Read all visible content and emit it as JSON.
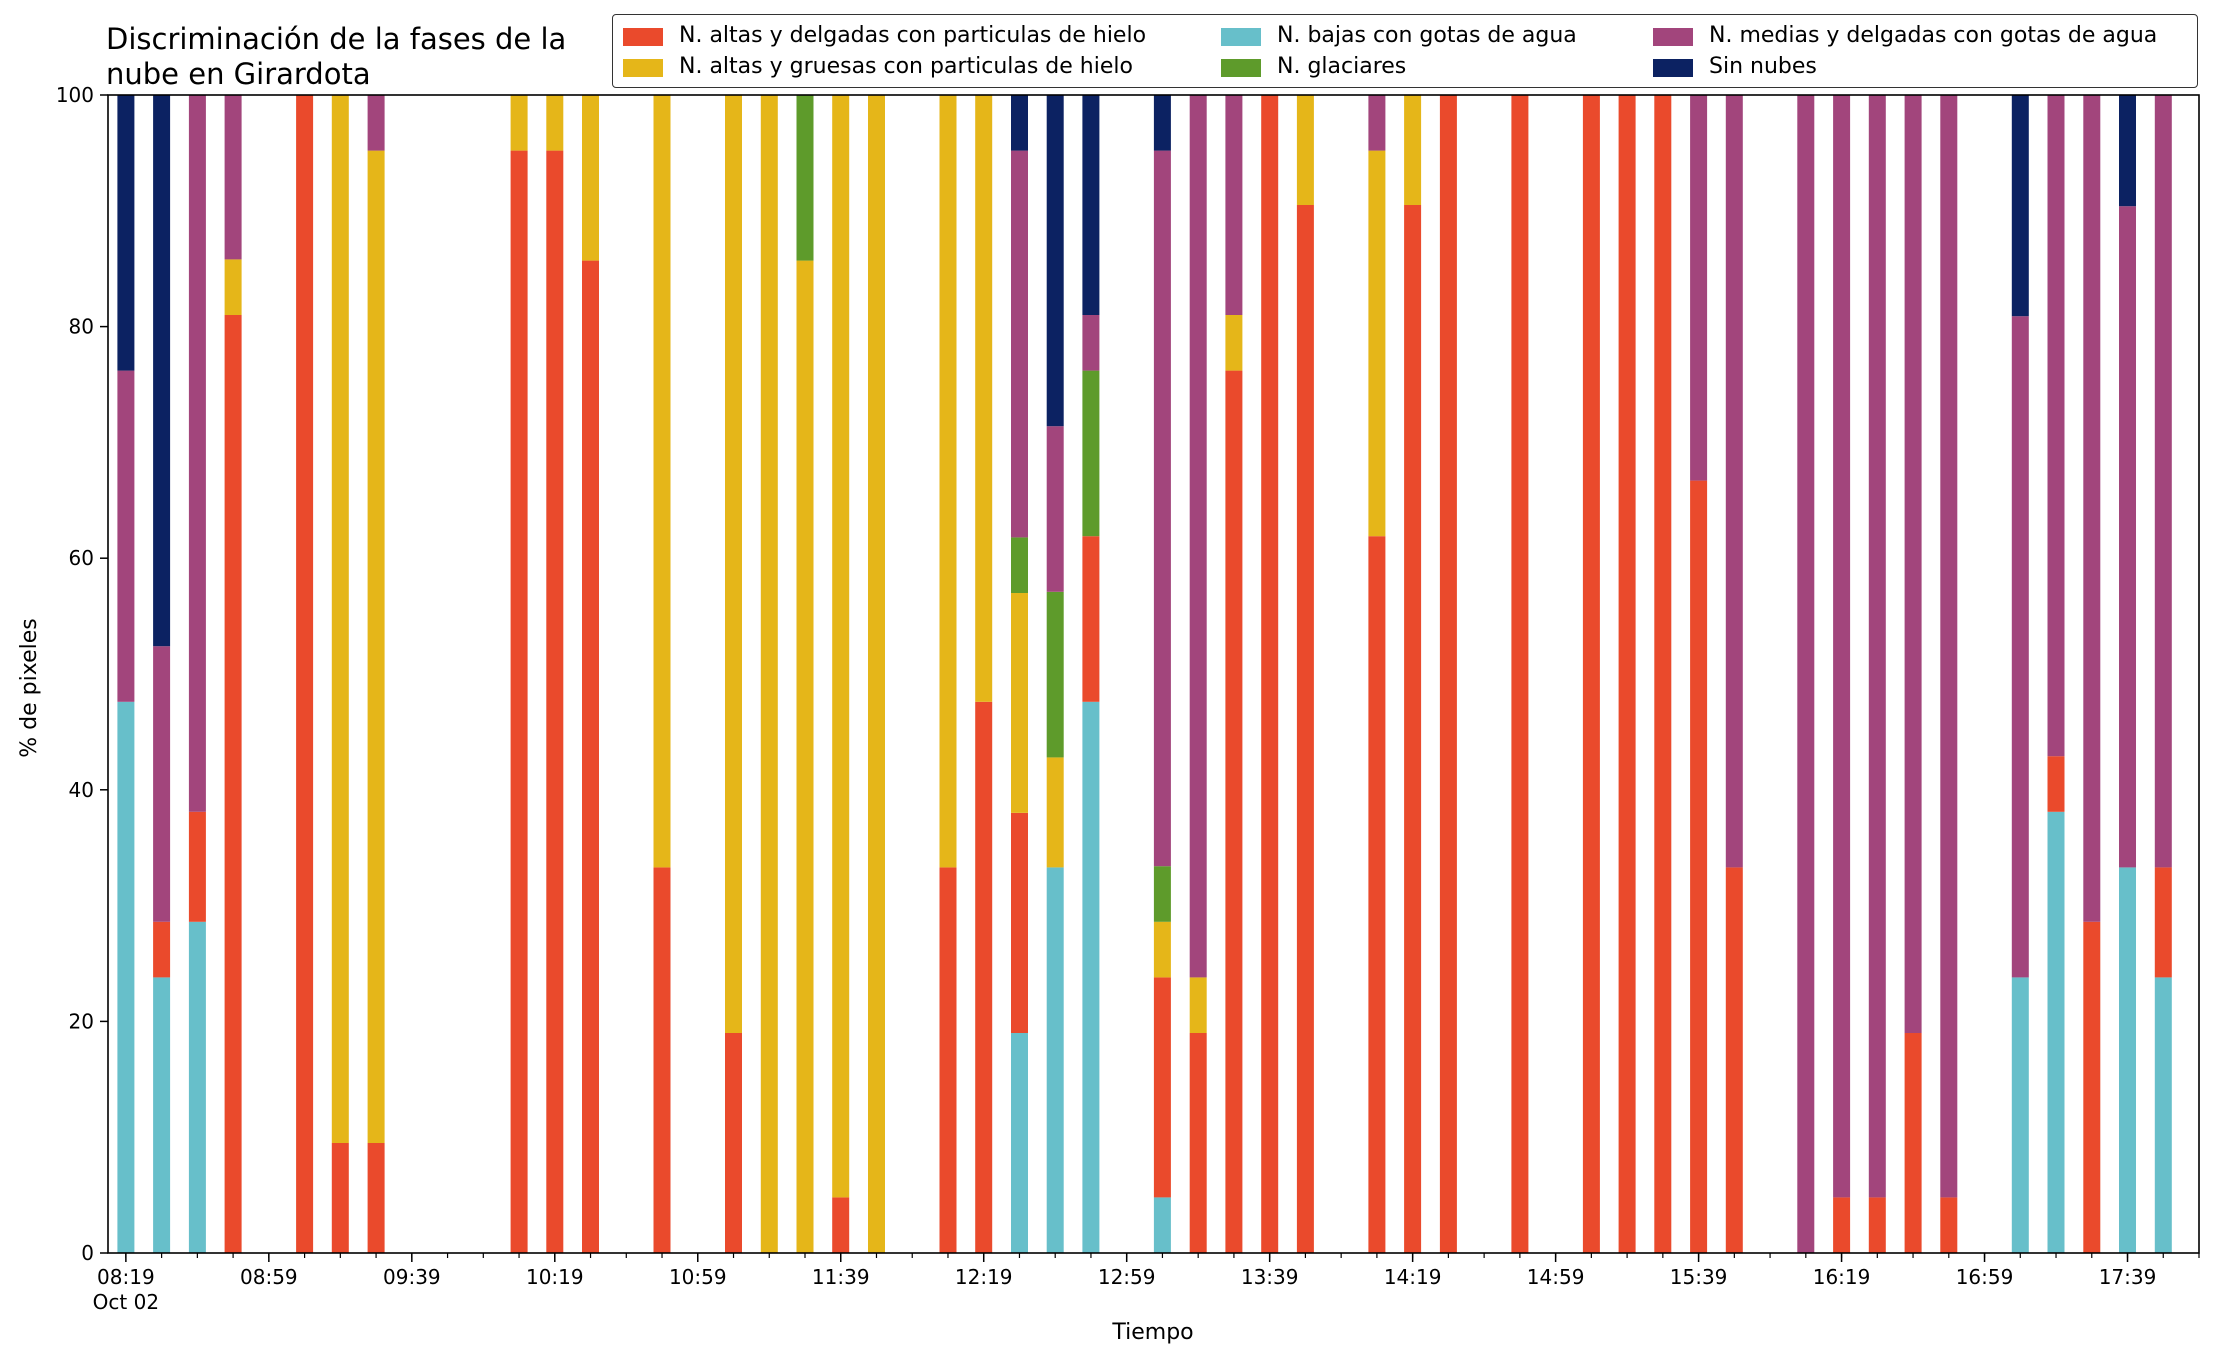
{
  "chart_data": {
    "type": "bar",
    "stacked": true,
    "title": "Discriminación de la fases de la nube en Girardota",
    "xlabel": "Tiempo",
    "ylabel": "% de pixeles",
    "ylim": [
      0,
      100
    ],
    "yticks": [
      "0",
      "20",
      "40",
      "60",
      "80",
      "100"
    ],
    "x_time_range": [
      "08:14",
      "17:59"
    ],
    "x_tick_labels": [
      {
        "time": "08:19",
        "label": "08:19",
        "sublabel": "Oct 02"
      },
      {
        "time": "08:59",
        "label": "08:59"
      },
      {
        "time": "09:39",
        "label": "09:39"
      },
      {
        "time": "10:19",
        "label": "10:19"
      },
      {
        "time": "10:59",
        "label": "10:59"
      },
      {
        "time": "11:39",
        "label": "11:39"
      },
      {
        "time": "12:19",
        "label": "12:19"
      },
      {
        "time": "12:59",
        "label": "12:59"
      },
      {
        "time": "13:39",
        "label": "13:39"
      },
      {
        "time": "14:19",
        "label": "14:19"
      },
      {
        "time": "14:59",
        "label": "14:59"
      },
      {
        "time": "15:39",
        "label": "15:39"
      },
      {
        "time": "16:19",
        "label": "16:19"
      },
      {
        "time": "16:59",
        "label": "16:59"
      },
      {
        "time": "17:39",
        "label": "17:39"
      }
    ],
    "legend_position": "top-right",
    "series": [
      {
        "name": "N. altas y delgadas con particulas de hielo",
        "color": "#ea4a2c"
      },
      {
        "name": "N. altas y gruesas con particulas de hielo",
        "color": "#e5b619"
      },
      {
        "name": "N. bajas con gotas de agua",
        "color": "#67bfca"
      },
      {
        "name": "N. glaciares",
        "color": "#5e9b2b"
      },
      {
        "name": "N. medias y delgadas con gotas de agua",
        "color": "#a2457c"
      },
      {
        "name": "Sin nubes",
        "color": "#0c2262"
      }
    ],
    "stack_order": [
      "N. bajas con gotas de agua",
      "N. altas y delgadas con particulas de hielo",
      "N. altas y gruesas con particulas de hielo",
      "N. glaciares",
      "N. medias y delgadas con gotas de agua",
      "Sin nubes"
    ],
    "bars": [
      {
        "time": "08:19",
        "values": {
          "N. bajas con gotas de agua": 47.6,
          "N. medias y delgadas con gotas de agua": 28.6,
          "Sin nubes": 23.8
        }
      },
      {
        "time": "08:29",
        "values": {
          "N. altas y delgadas con particulas de hielo": 4.8,
          "N. bajas con gotas de agua": 23.8,
          "N. medias y delgadas con gotas de agua": 23.8,
          "Sin nubes": 47.6
        }
      },
      {
        "time": "08:39",
        "values": {
          "N. altas y delgadas con particulas de hielo": 9.5,
          "N. bajas con gotas de agua": 28.6,
          "N. medias y delgadas con gotas de agua": 61.9
        }
      },
      {
        "time": "08:49",
        "values": {
          "N. altas y delgadas con particulas de hielo": 81.0,
          "N. altas y gruesas con particulas de hielo": 4.8,
          "N. medias y delgadas con gotas de agua": 14.2
        }
      },
      {
        "time": "09:09",
        "values": {
          "N. altas y delgadas con particulas de hielo": 100
        }
      },
      {
        "time": "09:19",
        "values": {
          "N. altas y delgadas con particulas de hielo": 9.5,
          "N. altas y gruesas con particulas de hielo": 90.5
        }
      },
      {
        "time": "09:29",
        "values": {
          "N. altas y delgadas con particulas de hielo": 9.5,
          "N. altas y gruesas con particulas de hielo": 85.7,
          "N. medias y delgadas con gotas de agua": 4.8
        }
      },
      {
        "time": "10:09",
        "values": {
          "N. altas y delgadas con particulas de hielo": 95.2,
          "N. altas y gruesas con particulas de hielo": 4.8
        }
      },
      {
        "time": "10:19",
        "values": {
          "N. altas y delgadas con particulas de hielo": 95.2,
          "N. altas y gruesas con particulas de hielo": 4.8
        }
      },
      {
        "time": "10:29",
        "values": {
          "N. altas y delgadas con particulas de hielo": 85.7,
          "N. altas y gruesas con particulas de hielo": 14.3
        }
      },
      {
        "time": "10:49",
        "values": {
          "N. altas y delgadas con particulas de hielo": 33.3,
          "N. altas y gruesas con particulas de hielo": 66.7
        }
      },
      {
        "time": "11:09",
        "values": {
          "N. altas y delgadas con particulas de hielo": 19.0,
          "N. altas y gruesas con particulas de hielo": 81.0
        }
      },
      {
        "time": "11:19",
        "values": {
          "N. altas y gruesas con particulas de hielo": 100
        }
      },
      {
        "time": "11:29",
        "values": {
          "N. altas y gruesas con particulas de hielo": 85.7,
          "N. glaciares": 14.3
        }
      },
      {
        "time": "11:39",
        "values": {
          "N. altas y delgadas con particulas de hielo": 4.8,
          "N. altas y gruesas con particulas de hielo": 95.2
        }
      },
      {
        "time": "11:49",
        "values": {
          "N. altas y gruesas con particulas de hielo": 100
        }
      },
      {
        "time": "12:09",
        "values": {
          "N. altas y delgadas con particulas de hielo": 33.3,
          "N. altas y gruesas con particulas de hielo": 66.7
        }
      },
      {
        "time": "12:19",
        "values": {
          "N. altas y delgadas con particulas de hielo": 47.6,
          "N. altas y gruesas con particulas de hielo": 52.4
        }
      },
      {
        "time": "12:29",
        "values": {
          "N. altas y delgadas con particulas de hielo": 19.0,
          "N. altas y gruesas con particulas de hielo": 19.0,
          "N. bajas con gotas de agua": 19.0,
          "N. glaciares": 4.8,
          "N. medias y delgadas con gotas de agua": 33.4,
          "Sin nubes": 4.8
        }
      },
      {
        "time": "12:39",
        "values": {
          "N. altas y gruesas con particulas de hielo": 9.5,
          "N. bajas con gotas de agua": 33.3,
          "N. glaciares": 14.3,
          "N. medias y delgadas con gotas de agua": 14.3,
          "Sin nubes": 28.6
        }
      },
      {
        "time": "12:49",
        "values": {
          "N. altas y delgadas con particulas de hielo": 14.3,
          "N. bajas con gotas de agua": 47.6,
          "N. glaciares": 14.3,
          "N. medias y delgadas con gotas de agua": 4.8,
          "Sin nubes": 19.0
        }
      },
      {
        "time": "13:09",
        "values": {
          "N. altas y delgadas con particulas de hielo": 19.0,
          "N. altas y gruesas con particulas de hielo": 4.8,
          "N. bajas con gotas de agua": 4.8,
          "N. glaciares": 4.8,
          "N. medias y delgadas con gotas de agua": 61.8,
          "Sin nubes": 4.8
        }
      },
      {
        "time": "13:19",
        "values": {
          "N. altas y delgadas con particulas de hielo": 19.0,
          "N. altas y gruesas con particulas de hielo": 4.8,
          "N. medias y delgadas con gotas de agua": 76.2
        }
      },
      {
        "time": "13:29",
        "values": {
          "N. altas y delgadas con particulas de hielo": 76.2,
          "N. altas y gruesas con particulas de hielo": 4.8,
          "N. medias y delgadas con gotas de agua": 19.0
        }
      },
      {
        "time": "13:39",
        "values": {
          "N. altas y delgadas con particulas de hielo": 100
        }
      },
      {
        "time": "13:49",
        "values": {
          "N. altas y delgadas con particulas de hielo": 90.5,
          "N. altas y gruesas con particulas de hielo": 9.5
        }
      },
      {
        "time": "14:09",
        "values": {
          "N. altas y delgadas con particulas de hielo": 61.9,
          "N. altas y gruesas con particulas de hielo": 33.3,
          "N. medias y delgadas con gotas de agua": 4.8
        }
      },
      {
        "time": "14:19",
        "values": {
          "N. altas y delgadas con particulas de hielo": 90.5,
          "N. altas y gruesas con particulas de hielo": 9.5
        }
      },
      {
        "time": "14:29",
        "values": {
          "N. altas y delgadas con particulas de hielo": 100
        }
      },
      {
        "time": "14:49",
        "values": {
          "N. altas y delgadas con particulas de hielo": 100
        }
      },
      {
        "time": "15:09",
        "values": {
          "N. altas y delgadas con particulas de hielo": 100
        }
      },
      {
        "time": "15:19",
        "values": {
          "N. altas y delgadas con particulas de hielo": 100
        }
      },
      {
        "time": "15:29",
        "values": {
          "N. altas y delgadas con particulas de hielo": 100
        }
      },
      {
        "time": "15:39",
        "values": {
          "N. altas y delgadas con particulas de hielo": 66.7,
          "N. medias y delgadas con gotas de agua": 33.3
        }
      },
      {
        "time": "15:49",
        "values": {
          "N. altas y delgadas con particulas de hielo": 33.3,
          "N. medias y delgadas con gotas de agua": 66.7
        }
      },
      {
        "time": "16:09",
        "values": {
          "N. medias y delgadas con gotas de agua": 100
        }
      },
      {
        "time": "16:19",
        "values": {
          "N. altas y delgadas con particulas de hielo": 4.8,
          "N. medias y delgadas con gotas de agua": 95.2
        }
      },
      {
        "time": "16:29",
        "values": {
          "N. altas y delgadas con particulas de hielo": 4.8,
          "N. medias y delgadas con gotas de agua": 95.2
        }
      },
      {
        "time": "16:39",
        "values": {
          "N. altas y delgadas con particulas de hielo": 19.0,
          "N. medias y delgadas con gotas de agua": 81.0
        }
      },
      {
        "time": "16:49",
        "values": {
          "N. altas y delgadas con particulas de hielo": 4.8,
          "N. medias y delgadas con gotas de agua": 95.2
        }
      },
      {
        "time": "17:09",
        "values": {
          "N. bajas con gotas de agua": 23.8,
          "N. medias y delgadas con gotas de agua": 57.1,
          "Sin nubes": 19.1
        }
      },
      {
        "time": "17:19",
        "values": {
          "N. altas y delgadas con particulas de hielo": 4.8,
          "N. bajas con gotas de agua": 38.1,
          "N. medias y delgadas con gotas de agua": 57.1
        }
      },
      {
        "time": "17:29",
        "values": {
          "N. altas y delgadas con particulas de hielo": 28.6,
          "N. medias y delgadas con gotas de agua": 71.4
        }
      },
      {
        "time": "17:39",
        "values": {
          "N. bajas con gotas de agua": 33.3,
          "N. medias y delgadas con gotas de agua": 57.1,
          "Sin nubes": 9.6
        }
      },
      {
        "time": "17:49",
        "values": {
          "N. altas y delgadas con particulas de hielo": 9.5,
          "N. bajas con gotas de agua": 23.8,
          "N. medias y delgadas con gotas de agua": 66.7
        }
      }
    ]
  }
}
